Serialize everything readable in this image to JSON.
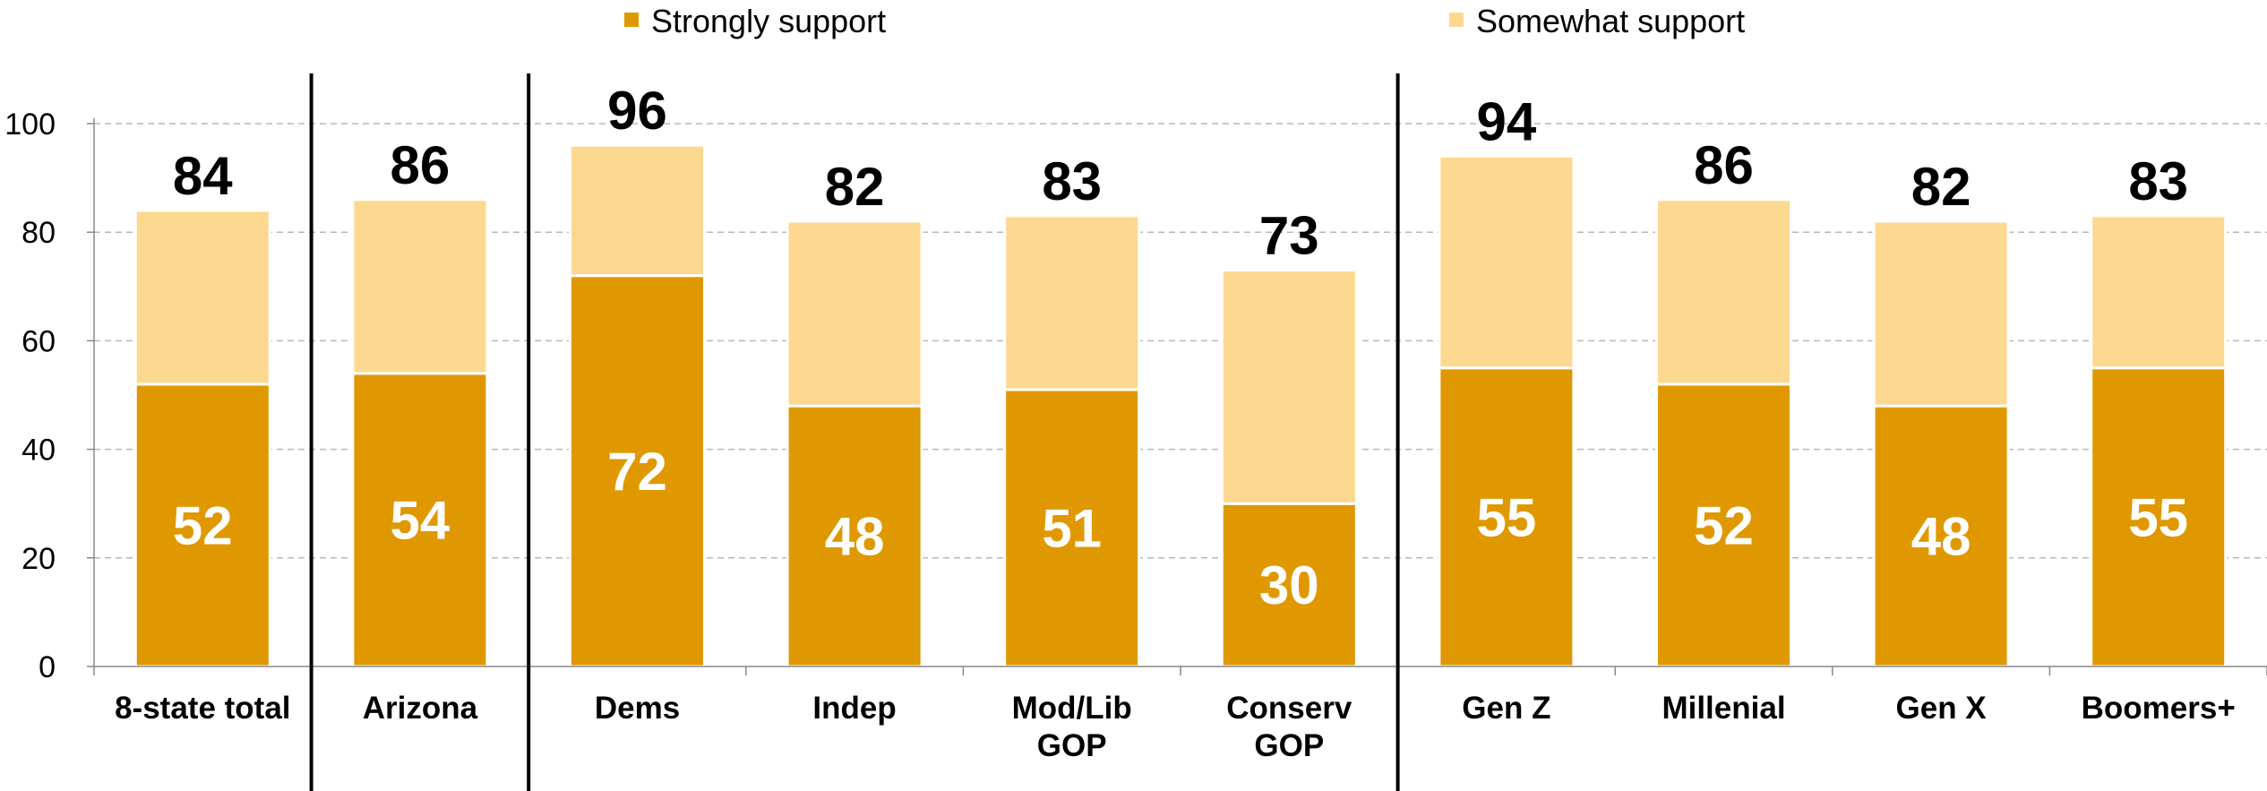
{
  "chart_data": {
    "type": "bar",
    "stacked": true,
    "categories": [
      [
        "8-state total"
      ],
      [
        "Arizona"
      ],
      [
        "Dems"
      ],
      [
        "Indep"
      ],
      [
        "Mod/Lib",
        "GOP"
      ],
      [
        "Conserv",
        "GOP"
      ],
      [
        "Gen Z"
      ],
      [
        "Millenial"
      ],
      [
        "Gen X"
      ],
      [
        "Boomers+"
      ]
    ],
    "series": [
      {
        "name": "Strongly support",
        "color": "#E09800",
        "values": [
          52,
          54,
          72,
          48,
          51,
          30,
          55,
          52,
          48,
          55
        ]
      },
      {
        "name": "Somewhat support",
        "color": "#FCD890",
        "values": [
          32,
          32,
          24,
          34,
          32,
          43,
          39,
          34,
          34,
          28
        ]
      }
    ],
    "totals": [
      84,
      86,
      96,
      82,
      83,
      73,
      94,
      86,
      82,
      83
    ],
    "yticks": [
      0,
      20,
      40,
      60,
      80,
      100
    ],
    "ylim": [
      0,
      100
    ],
    "grid": true,
    "legend_position": "top",
    "group_separators_after": [
      0,
      1,
      5
    ]
  }
}
